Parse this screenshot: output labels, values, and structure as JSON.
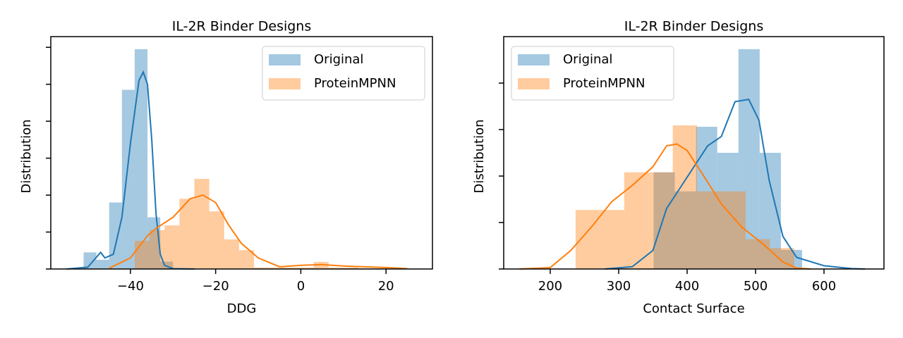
{
  "chart_data": [
    {
      "type": "histogram",
      "title": "IL-2R Binder Designs",
      "x_label": "DDG",
      "y_label": "Distribution",
      "xlim": [
        -58.7,
        30.9
      ],
      "xticks": [
        {
          "value": -40,
          "label": "−40"
        },
        {
          "value": -20,
          "label": "−20"
        },
        0,
        20
      ],
      "ylim": [
        0,
        6.29
      ],
      "yticks": [
        0,
        1,
        2,
        3,
        4,
        5,
        6
      ],
      "legend": "upper right",
      "series": [
        {
          "name": "Original",
          "color": "#1f77b4",
          "bins": [
            -51,
            -48,
            -45,
            -42,
            -39,
            -36,
            -33,
            -30
          ],
          "values": [
            0.45,
            0.25,
            1.8,
            4.85,
            5.95,
            1.4,
            0.2
          ],
          "kde_x": [
            -55,
            -50,
            -47,
            -46,
            -44,
            -42,
            -40,
            -38,
            -37,
            -36,
            -35,
            -34,
            -33,
            -32,
            -30,
            -25
          ],
          "kde_values": [
            0,
            0.05,
            0.45,
            0.3,
            0.4,
            1.4,
            3.4,
            5.1,
            5.33,
            5.0,
            3.5,
            1.5,
            0.4,
            0.1,
            0.01,
            0
          ]
        },
        {
          "name": "ProteinMPNN",
          "color": "#ff7f0e",
          "bins": [
            -39,
            -35.5,
            -32,
            -28.5,
            -25,
            -21.5,
            -18,
            -14.5,
            -11,
            -7.5,
            -4,
            -0.5,
            3,
            6.5,
            10,
            13.5,
            17,
            20.5
          ],
          "values": [
            0.76,
            1.05,
            1.18,
            1.9,
            2.44,
            1.56,
            0.8,
            0.51,
            0.04,
            0.04,
            0.04,
            0.04,
            0.19,
            0.04,
            0.04,
            0.02,
            0.02
          ],
          "kde_x": [
            -45,
            -40,
            -36,
            -34,
            -30,
            -26,
            -23,
            -20,
            -17,
            -14,
            -10,
            -5,
            0,
            5,
            10,
            15,
            20,
            25
          ],
          "kde_values": [
            0.02,
            0.3,
            0.9,
            1.1,
            1.4,
            1.9,
            2.0,
            1.8,
            1.2,
            0.7,
            0.3,
            0.06,
            0.1,
            0.12,
            0.08,
            0.06,
            0.04,
            0.01
          ]
        }
      ]
    },
    {
      "type": "histogram",
      "title": "IL-2R Binder Designs",
      "x_label": "Contact Surface",
      "y_label": "Distribution",
      "xlim": [
        132,
        687.6
      ],
      "xticks": [
        200,
        300,
        400,
        500,
        600
      ],
      "ylim": [
        0,
        5
      ],
      "yticks": [
        0,
        1,
        2,
        3,
        4
      ],
      "legend": "upper left",
      "series": [
        {
          "name": "Original",
          "color": "#1f77b4",
          "bins": [
            351,
            382,
            413,
            444,
            475,
            506,
            537,
            568
          ],
          "values": [
            2.08,
            1.67,
            3.06,
            2.5,
            4.73,
            2.5,
            0.41
          ],
          "kde_x": [
            280,
            320,
            350,
            370,
            390,
            410,
            430,
            450,
            470,
            490,
            505,
            520,
            540,
            560,
            600,
            640,
            660
          ],
          "kde_values": [
            0,
            0.05,
            0.4,
            1.3,
            1.75,
            2.2,
            2.65,
            2.85,
            3.6,
            3.65,
            3.2,
            1.9,
            0.7,
            0.25,
            0.07,
            0.01,
            0
          ]
        },
        {
          "name": "ProteinMPNN",
          "color": "#ff7f0e",
          "bins": [
            237,
            272.5,
            308,
            343.5,
            379,
            414.5,
            450,
            485.5,
            521,
            556.5
          ],
          "values": [
            1.27,
            1.27,
            2.08,
            2.08,
            3.09,
            1.67,
            1.67,
            0.64,
            0.45
          ],
          "kde_x": [
            155,
            200,
            230,
            260,
            290,
            320,
            350,
            370,
            385,
            400,
            420,
            450,
            480,
            510,
            540,
            560,
            580
          ],
          "kde_values": [
            0,
            0.03,
            0.4,
            0.9,
            1.45,
            1.8,
            2.2,
            2.65,
            2.69,
            2.55,
            2.1,
            1.4,
            0.9,
            0.55,
            0.15,
            0.02,
            0
          ]
        }
      ]
    }
  ]
}
